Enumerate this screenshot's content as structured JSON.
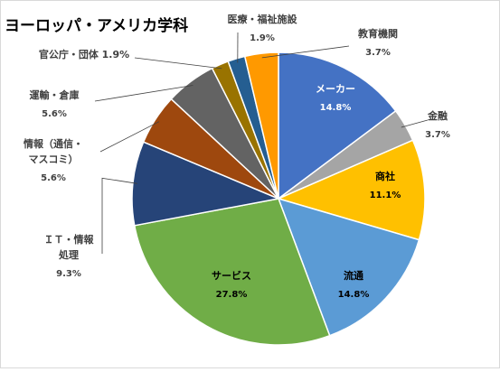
{
  "chart_data": {
    "type": "pie",
    "title": "ヨーロッパ・アメリカ学科",
    "slices": [
      {
        "label": [
          "メーカー"
        ],
        "value": 14.8,
        "pct_text": "14.8%",
        "color": "#4472C4",
        "label_style": "inside"
      },
      {
        "label": [
          "金融"
        ],
        "value": 3.7,
        "pct_text": "3.7%",
        "color": "#A5A5A5",
        "label_style": "outside"
      },
      {
        "label": [
          "商社"
        ],
        "value": 11.1,
        "pct_text": "11.1%",
        "color": "#FFC000",
        "label_style": "inside-dark"
      },
      {
        "label": [
          "流通"
        ],
        "value": 14.8,
        "pct_text": "14.8%",
        "color": "#5B9BD5",
        "label_style": "inside-dark"
      },
      {
        "label": [
          "サービス"
        ],
        "value": 27.8,
        "pct_text": "27.8%",
        "color": "#70AD47",
        "label_style": "inside-dark"
      },
      {
        "label": [
          "ＩＴ・情報",
          "処理"
        ],
        "value": 9.3,
        "pct_text": "9.3%",
        "color": "#264478",
        "label_style": "outside"
      },
      {
        "label": [
          "情報（通信・",
          "マスコミ）"
        ],
        "value": 5.6,
        "pct_text": "5.6%",
        "color": "#9E480E",
        "label_style": "outside"
      },
      {
        "label": [
          "運輸・倉庫"
        ],
        "value": 5.6,
        "pct_text": "5.6%",
        "color": "#636363",
        "label_style": "outside"
      },
      {
        "label": [
          "官公庁・団体"
        ],
        "value": 1.9,
        "pct_text": "1.9%",
        "color": "#997300",
        "label_style": "outside-inline"
      },
      {
        "label": [
          "医療・福祉施設"
        ],
        "value": 1.9,
        "pct_text": "1.9%",
        "color": "#255E91",
        "label_style": "outside"
      },
      {
        "label": [
          "教育機関"
        ],
        "value": 3.7,
        "pct_text": "3.7%",
        "color": "#FF9900",
        "label_style": "outside"
      }
    ]
  }
}
